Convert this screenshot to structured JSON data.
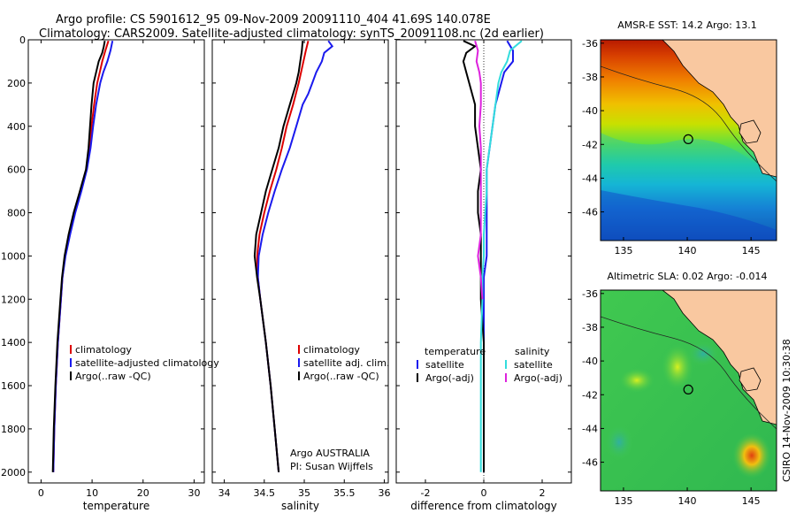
{
  "header": {
    "line1": "Argo profile: CS 5901612_95 09-Nov-2009 20091110_404 41.69S 140.078E",
    "line2": "Climatology: CARS2009. Satellite-adjusted climatology: synTS_20091108.nc (2d earlier)"
  },
  "credit": "CSIRO 14-Nov-2009 10:30:38",
  "colors": {
    "climatology": "#dd0000",
    "satellite": "#1a1aee",
    "argo": "#000000",
    "satellite_salinity": "#33dddd",
    "argo_salinity_diff": "#dd22dd",
    "land": "#f9c8a0"
  },
  "chart_data": [
    {
      "id": "temperature-profile",
      "type": "line",
      "xlabel": "temperature",
      "ylabel": "",
      "xlim": [
        -2.5,
        32
      ],
      "ylim": [
        0,
        2050
      ],
      "y_inverted": true,
      "xticks": [
        0,
        10,
        20,
        30
      ],
      "yticks": [
        0,
        200,
        400,
        600,
        800,
        1000,
        1200,
        1400,
        1600,
        1800,
        2000
      ],
      "legend": {
        "placement": "lower-right",
        "entries": [
          "climatology",
          "satellite-adjusted climatology",
          "Argo(..raw -QC)"
        ]
      },
      "series": [
        {
          "name": "climatology",
          "color": "#dd0000",
          "depth": [
            5,
            50,
            100,
            150,
            200,
            300,
            400,
            500,
            600,
            700,
            800,
            900,
            1000,
            1100,
            1200,
            1400,
            1600,
            1800,
            2000
          ],
          "values": [
            13.2,
            12.6,
            12.0,
            11.5,
            11.0,
            10.4,
            9.9,
            9.5,
            8.9,
            7.8,
            6.6,
            5.6,
            4.7,
            4.2,
            3.9,
            3.3,
            2.9,
            2.6,
            2.4
          ]
        },
        {
          "name": "satellite-adjusted climatology",
          "color": "#1a1aee",
          "depth": [
            5,
            50,
            100,
            150,
            200,
            300,
            400,
            500,
            600,
            700,
            800,
            900,
            1000,
            1100,
            1200,
            1400,
            1600,
            1800,
            2000
          ],
          "values": [
            14.0,
            13.6,
            13.0,
            12.2,
            11.6,
            10.8,
            10.2,
            9.7,
            9.0,
            7.9,
            6.7,
            5.7,
            4.8,
            4.2,
            3.9,
            3.3,
            2.9,
            2.6,
            2.4
          ]
        },
        {
          "name": "Argo(..raw -QC)",
          "color": "#000000",
          "depth": [
            5,
            30,
            60,
            100,
            150,
            200,
            300,
            400,
            500,
            600,
            700,
            800,
            900,
            1000,
            1100,
            1200,
            1400,
            1600,
            1800,
            2000
          ],
          "values": [
            12.5,
            12.3,
            12.0,
            11.3,
            10.8,
            10.3,
            9.9,
            9.6,
            9.3,
            8.8,
            7.6,
            6.4,
            5.4,
            4.6,
            4.1,
            3.8,
            3.2,
            2.8,
            2.5,
            2.3
          ]
        }
      ]
    },
    {
      "id": "salinity-profile",
      "type": "line",
      "xlabel": "salinity",
      "ylabel": "",
      "xlim": [
        33.85,
        36.05
      ],
      "ylim": [
        0,
        2050
      ],
      "y_inverted": true,
      "xticks": [
        34,
        34.5,
        35,
        35.5,
        36
      ],
      "legend": {
        "placement": "lower-right",
        "entries": [
          "climatology",
          "satellite adj. clim.",
          "Argo(..raw -QC)"
        ]
      },
      "annotation": [
        "Argo AUSTRALIA",
        "PI: Susan Wijffels"
      ],
      "series": [
        {
          "name": "climatology",
          "color": "#dd0000",
          "depth": [
            5,
            50,
            100,
            150,
            200,
            300,
            400,
            500,
            600,
            700,
            800,
            900,
            1000,
            1100,
            1200,
            1400,
            1600,
            1800,
            2000
          ],
          "values": [
            35.05,
            35.02,
            34.99,
            34.96,
            34.93,
            34.86,
            34.78,
            34.72,
            34.65,
            34.57,
            34.5,
            34.44,
            34.41,
            34.42,
            34.45,
            34.52,
            34.58,
            34.63,
            34.68
          ]
        },
        {
          "name": "satellite adj. clim.",
          "color": "#1a1aee",
          "depth": [
            5,
            30,
            60,
            100,
            150,
            200,
            250,
            300,
            400,
            500,
            600,
            700,
            800,
            900,
            1000,
            1100,
            1200,
            1400,
            1600,
            1800,
            2000
          ],
          "values": [
            35.3,
            35.35,
            35.25,
            35.22,
            35.15,
            35.1,
            35.05,
            34.98,
            34.9,
            34.82,
            34.72,
            34.63,
            34.55,
            34.48,
            34.43,
            34.42,
            34.45,
            34.52,
            34.58,
            34.63,
            34.68
          ]
        },
        {
          "name": "Argo(..raw -QC)",
          "color": "#000000",
          "depth": [
            5,
            50,
            100,
            150,
            200,
            300,
            400,
            500,
            600,
            700,
            800,
            900,
            1000,
            1100,
            1200,
            1400,
            1600,
            1800,
            2000
          ],
          "values": [
            34.98,
            34.97,
            34.95,
            34.93,
            34.9,
            34.82,
            34.74,
            34.68,
            34.6,
            34.52,
            34.46,
            34.4,
            34.38,
            34.41,
            34.45,
            34.52,
            34.58,
            34.63,
            34.68
          ]
        }
      ]
    },
    {
      "id": "difference-from-climatology",
      "type": "line",
      "xlabel": "difference from climatology",
      "ylabel": "",
      "xlim": [
        -3,
        3
      ],
      "ylim": [
        0,
        2050
      ],
      "y_inverted": true,
      "xticks": [
        -2,
        0,
        2
      ],
      "legend": {
        "placement": "lower-center",
        "columns": [
          {
            "title": "temperature",
            "entries": [
              "satellite",
              "Argo(-adj)"
            ]
          },
          {
            "title": "salinity",
            "entries": [
              "satellite",
              "Argo(-adj)"
            ]
          }
        ]
      },
      "series": [
        {
          "name": "temperature satellite",
          "color": "#1a1aee",
          "depth": [
            5,
            50,
            100,
            150,
            200,
            300,
            400,
            500,
            600,
            700,
            800,
            900,
            1000,
            1100,
            1200,
            1400,
            1600,
            1800,
            2000
          ],
          "values": [
            0.8,
            1.0,
            1.0,
            0.7,
            0.6,
            0.4,
            0.3,
            0.2,
            0.1,
            0.1,
            0.1,
            0.1,
            0.1,
            0.0,
            0.0,
            0.0,
            0.0,
            0.0,
            0.0
          ]
        },
        {
          "name": "temperature Argo(-adj)",
          "color": "#000000",
          "depth": [
            5,
            30,
            60,
            100,
            150,
            200,
            300,
            400,
            500,
            600,
            700,
            800,
            900,
            1000,
            1100,
            1200,
            1400,
            1600,
            1800,
            2000
          ],
          "values": [
            -0.7,
            -0.3,
            -0.6,
            -0.7,
            -0.6,
            -0.5,
            -0.3,
            -0.3,
            -0.2,
            -0.1,
            -0.2,
            -0.2,
            -0.1,
            -0.1,
            -0.1,
            -0.1,
            0.0,
            0.0,
            0.0,
            0.0
          ]
        },
        {
          "name": "salinity satellite",
          "color": "#33dddd",
          "depth": [
            5,
            50,
            100,
            150,
            200,
            300,
            400,
            500,
            600,
            700,
            800,
            900,
            1000,
            1100,
            1200,
            1400,
            1600,
            1800,
            2000
          ],
          "values": [
            1.3,
            0.9,
            0.8,
            0.6,
            0.5,
            0.4,
            0.3,
            0.2,
            0.1,
            0.1,
            0.05,
            0.0,
            0.0,
            -0.05,
            -0.05,
            -0.1,
            -0.1,
            -0.1,
            -0.1
          ]
        },
        {
          "name": "salinity Argo(-adj)",
          "color": "#dd22dd",
          "depth": [
            5,
            50,
            100,
            150,
            200,
            300,
            400,
            500,
            600,
            700,
            800,
            900,
            1000,
            1100,
            1200
          ],
          "values": [
            -0.3,
            -0.2,
            -0.25,
            -0.15,
            -0.1,
            -0.1,
            -0.15,
            -0.1,
            -0.1,
            -0.1,
            -0.1,
            -0.1,
            -0.2,
            -0.1,
            -0.05
          ]
        }
      ]
    },
    {
      "id": "sst-map",
      "type": "heatmap",
      "title": "AMSR-E SST: 14.2 Argo: 13.1",
      "xlim": [
        133.2,
        147
      ],
      "ylim": [
        -47.7,
        -35.8
      ],
      "xticks": [
        135,
        140,
        145
      ],
      "yticks": [
        -36,
        -38,
        -40,
        -42,
        -44,
        -46
      ],
      "marker": {
        "lon": 140.078,
        "lat": -41.69
      },
      "colormap": "jet"
    },
    {
      "id": "sla-map",
      "type": "heatmap",
      "title": "Altimetric SLA: 0.02 Argo: -0.014",
      "xlim": [
        133.2,
        147
      ],
      "ylim": [
        -47.7,
        -35.8
      ],
      "xticks": [
        135,
        140,
        145
      ],
      "yticks": [
        -36,
        -38,
        -40,
        -42,
        -44,
        -46
      ],
      "marker": {
        "lon": 140.078,
        "lat": -41.69
      },
      "colormap": "jet"
    }
  ]
}
